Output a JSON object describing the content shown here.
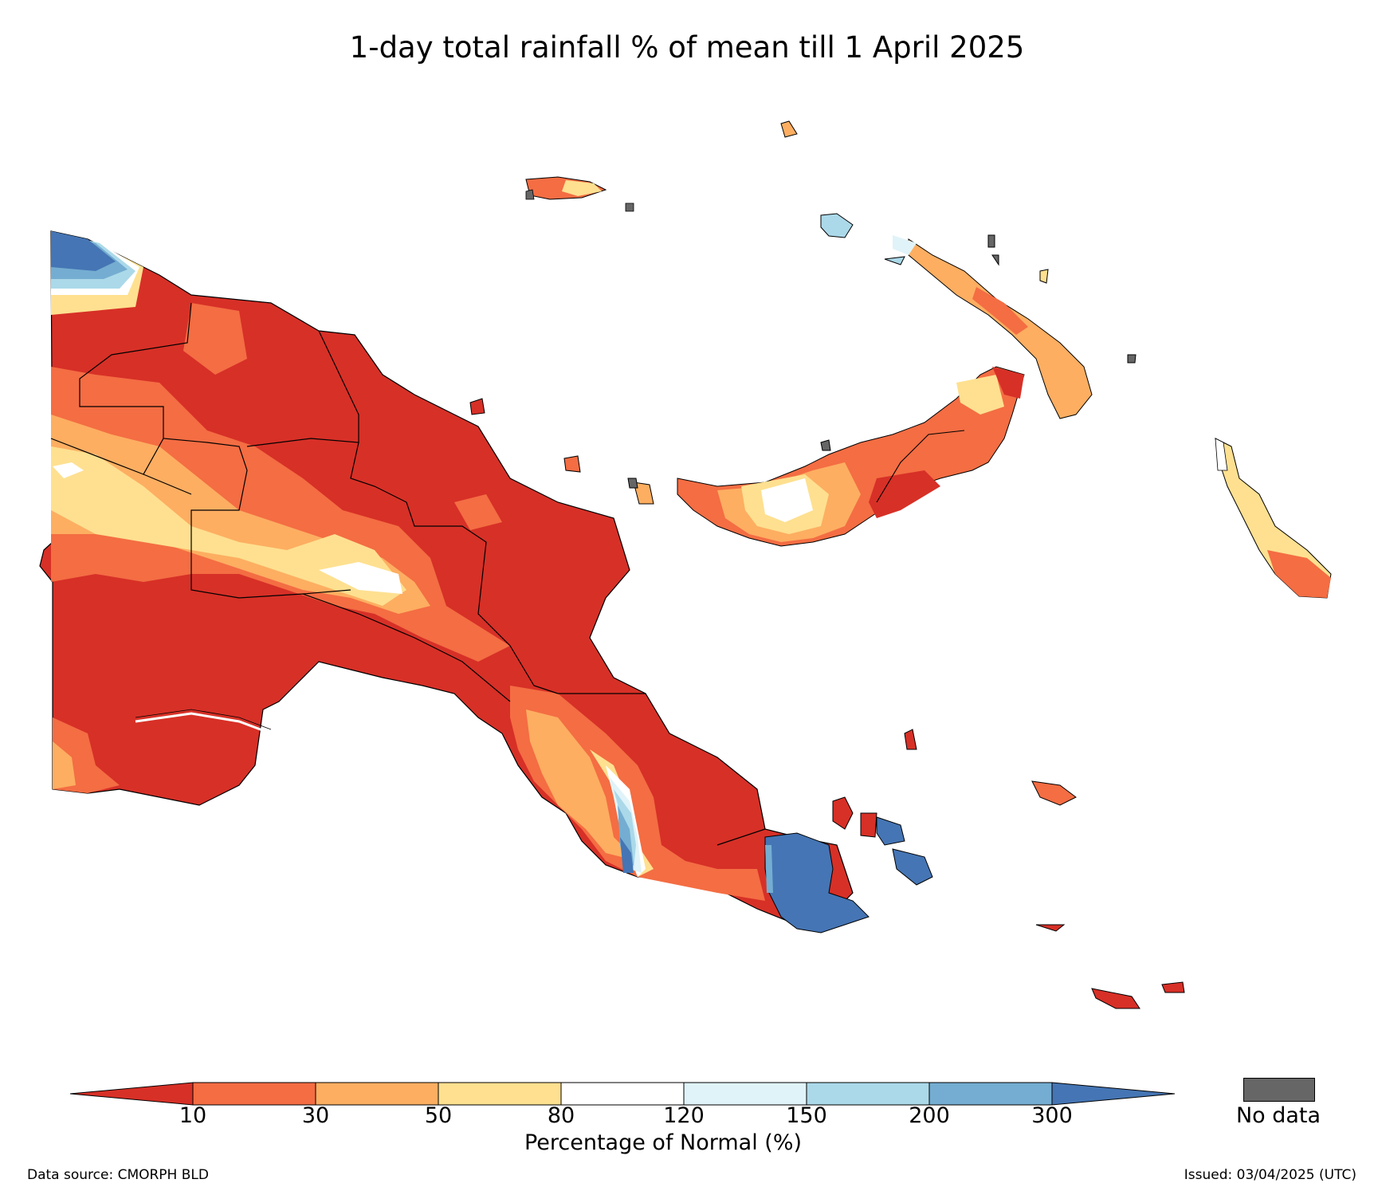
{
  "title": "1-day total rainfall % of mean till 1 April 2025",
  "colorbar": {
    "label": "Percentage of Normal (%)",
    "ticks": [
      "10",
      "30",
      "50",
      "80",
      "120",
      "150",
      "200",
      "300"
    ],
    "colors": [
      "#d73027",
      "#f46d43",
      "#fdae61",
      "#fee090",
      "#ffffff",
      "#e0f3f8",
      "#abd9e9",
      "#74add1",
      "#4575b4"
    ]
  },
  "legend": {
    "nodata_label": "No data",
    "nodata_color": "#666666"
  },
  "footer": {
    "source": "Data source: CMORPH BLD",
    "issued": "Issued: 03/04/2025 (UTC)"
  }
}
